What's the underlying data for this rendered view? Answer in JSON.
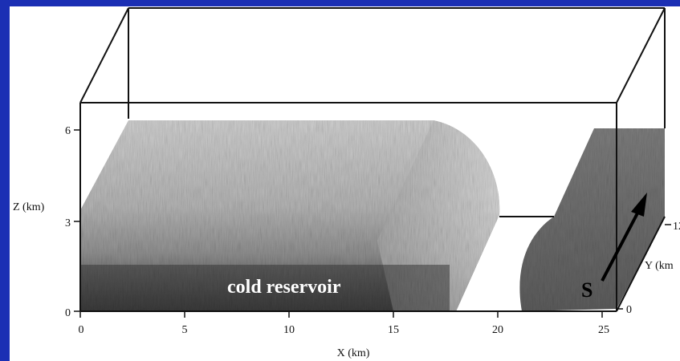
{
  "figure": {
    "region_label": "cold reservoir",
    "shear_label": "S",
    "axes": {
      "x": {
        "label": "X (km)",
        "ticks": [
          "0",
          "5",
          "10",
          "15",
          "20",
          "25"
        ]
      },
      "z": {
        "label": "Z (km)",
        "ticks": [
          "0",
          "3",
          "6"
        ]
      },
      "y": {
        "label": "Y (km",
        "ticks": [
          "0",
          "12"
        ]
      }
    }
  },
  "colors": {
    "frame_background": "#1b2fb4",
    "panel_background": "#ffffff",
    "box_lines": "#111111",
    "cold_pool_dark": "#3e3e3e",
    "cold_pool_mid": "#8c8c8c",
    "cold_pool_light": "#c9c9c9"
  }
}
